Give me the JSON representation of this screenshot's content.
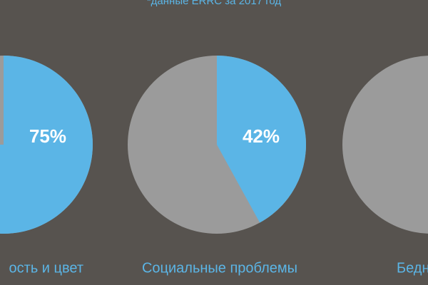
{
  "chart_data": {
    "type": "pie",
    "subtitle": "*данные ERRC за 2017 год",
    "categories": [
      "ость и цвет",
      "Социальные проблемы",
      "Бедн"
    ],
    "values": [
      75,
      42,
      null
    ],
    "value_labels": [
      "75%",
      "42%",
      null
    ],
    "color": "#5bb5e6",
    "rest_color": "#9b9b9b"
  }
}
